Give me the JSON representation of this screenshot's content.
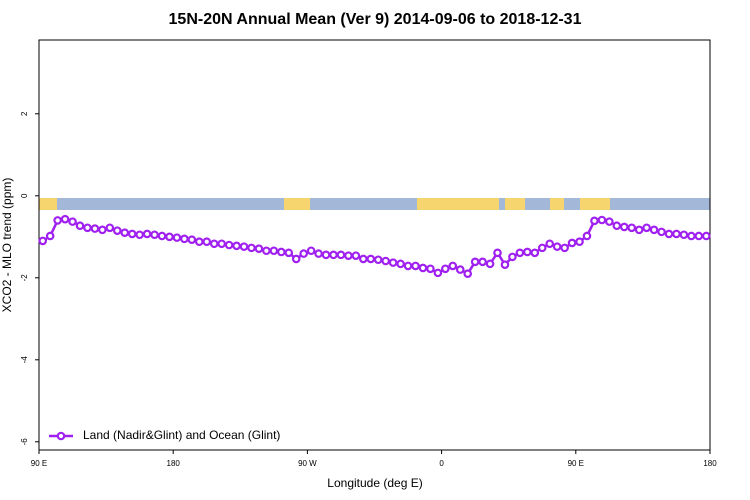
{
  "chart_data": {
    "type": "line",
    "title": "15N-20N Annual Mean (Ver 9)   2014-09-06 to 2018-12-31",
    "x_label": "Longitude (deg E)",
    "y_label": "XCO2 - MLO trend (ppm)",
    "xlim": [
      90,
      540
    ],
    "xticks": [
      {
        "value": 90,
        "label": "90 E"
      },
      180,
      {
        "value": 270,
        "label": "90 W"
      },
      {
        "value": 360,
        "label": "0"
      },
      {
        "value": 450,
        "label": "90 E"
      },
      {
        "value": 540,
        "label": "180"
      }
    ],
    "ylim": [
      -6.2,
      3.8
    ],
    "yticks": [
      -6,
      -4,
      -2,
      0,
      2
    ],
    "legend": "bottom-left",
    "x": [
      92.5,
      97.5,
      102.5,
      107.5,
      112.5,
      117.5,
      122.5,
      127.5,
      132.5,
      137.5,
      142.5,
      147.5,
      152.5,
      157.5,
      162.5,
      167.5,
      172.5,
      177.5,
      182.5,
      187.5,
      192.5,
      197.5,
      202.5,
      207.5,
      212.5,
      217.5,
      222.5,
      227.5,
      232.5,
      237.5,
      242.5,
      247.5,
      252.5,
      257.5,
      262.5,
      267.5,
      272.5,
      277.5,
      282.5,
      287.5,
      292.5,
      297.5,
      302.5,
      307.5,
      312.5,
      317.5,
      322.5,
      327.5,
      332.5,
      337.5,
      342.5,
      347.5,
      352.5,
      357.5,
      362.5,
      367.5,
      372.5,
      377.5,
      382.5,
      387.5,
      392.5,
      397.5,
      402.5,
      407.5,
      412.5,
      417.5,
      422.5,
      427.5,
      432.5,
      437.5,
      442.5,
      447.5,
      452.5,
      457.5,
      462.5,
      467.5,
      472.5,
      477.5,
      482.5,
      487.5,
      492.5,
      497.5,
      502.5,
      507.5,
      512.5,
      517.5,
      522.5,
      527.5,
      532.5,
      537.5
    ],
    "series": [
      {
        "name": "Land (Nadir&Glint) and Ocean (Glint)",
        "color": "#a020f0",
        "values": [
          -1.1,
          -0.98,
          -0.6,
          -0.57,
          -0.63,
          -0.73,
          -0.78,
          -0.8,
          -0.83,
          -0.78,
          -0.85,
          -0.9,
          -0.93,
          -0.95,
          -0.93,
          -0.95,
          -0.98,
          -1.0,
          -1.02,
          -1.05,
          -1.07,
          -1.12,
          -1.12,
          -1.17,
          -1.17,
          -1.2,
          -1.22,
          -1.24,
          -1.27,
          -1.29,
          -1.34,
          -1.34,
          -1.37,
          -1.39,
          -1.54,
          -1.41,
          -1.34,
          -1.41,
          -1.44,
          -1.44,
          -1.44,
          -1.46,
          -1.46,
          -1.54,
          -1.54,
          -1.56,
          -1.59,
          -1.63,
          -1.66,
          -1.71,
          -1.71,
          -1.76,
          -1.78,
          -1.88,
          -1.78,
          -1.71,
          -1.8,
          -1.9,
          -1.61,
          -1.61,
          -1.66,
          -1.39,
          -1.68,
          -1.49,
          -1.39,
          -1.37,
          -1.39,
          -1.27,
          -1.17,
          -1.24,
          -1.27,
          -1.15,
          -1.12,
          -0.98,
          -0.61,
          -0.59,
          -0.63,
          -0.73,
          -0.76,
          -0.78,
          -0.83,
          -0.78,
          -0.83,
          -0.88,
          -0.93,
          -0.93,
          -0.95,
          -0.98,
          -0.98,
          -0.98
        ]
      }
    ]
  }
}
